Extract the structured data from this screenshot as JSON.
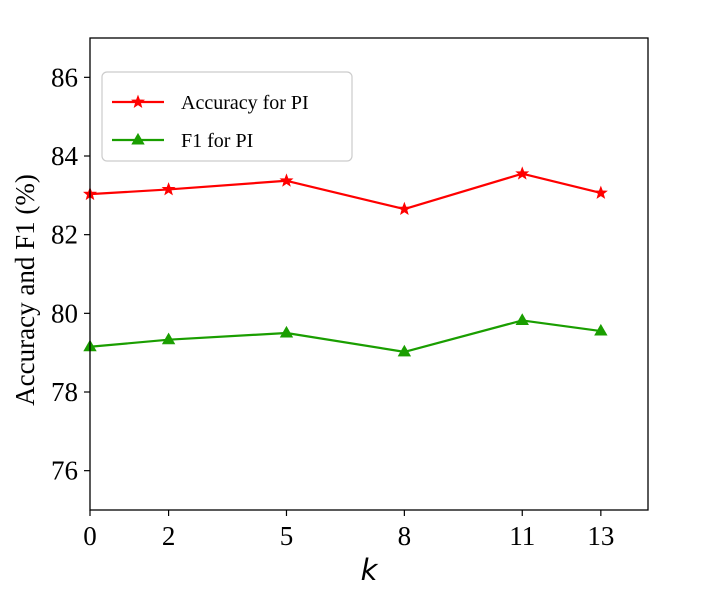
{
  "chart_data": {
    "type": "line",
    "x": [
      0,
      2,
      5,
      8,
      11,
      13
    ],
    "x_tick_labels": [
      "0",
      "2",
      "5",
      "8",
      "11",
      "13"
    ],
    "xlabel": "k",
    "ylabel": "Accuracy and F1 (%)",
    "ylim": [
      75,
      87
    ],
    "y_ticks": [
      76,
      78,
      80,
      82,
      84,
      86
    ],
    "y_tick_labels": [
      "76",
      "78",
      "80",
      "82",
      "84",
      "86"
    ],
    "grid": false,
    "legend_position": "upper-left",
    "series": [
      {
        "name": "Accuracy for PI",
        "values": [
          83.03,
          83.15,
          83.37,
          82.65,
          83.55,
          83.06
        ],
        "color": "#ff0000",
        "marker": "star"
      },
      {
        "name": "F1 for PI",
        "values": [
          79.15,
          79.33,
          79.5,
          79.02,
          79.82,
          79.55
        ],
        "color": "#1a9e00",
        "marker": "triangle"
      }
    ]
  }
}
